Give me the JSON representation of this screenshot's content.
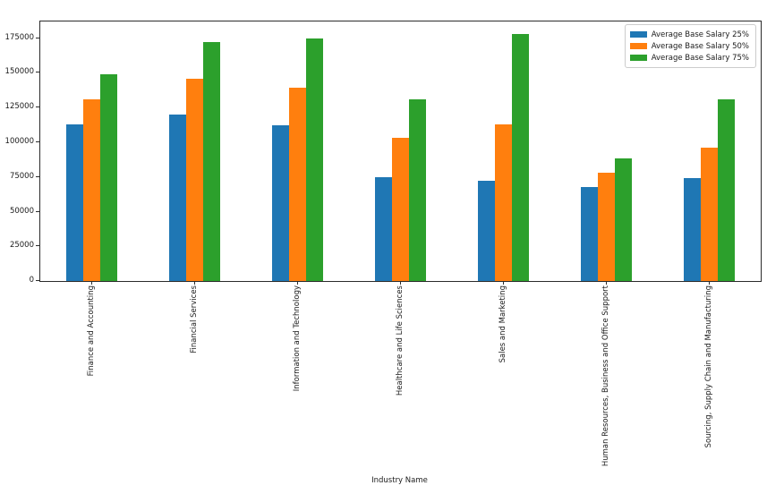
{
  "chart_data": {
    "type": "bar",
    "title": "",
    "xlabel": "Industry Name",
    "ylabel": "",
    "categories": [
      "Finance and Accounting",
      "Financial Services",
      "Information and Technology",
      "Healthcare and Life Sciences",
      "Sales and Marketing",
      "Human Resources, Business and Office Support",
      "Sourcing, Supply Chain and Manufacturing"
    ],
    "series": [
      {
        "name": "Average Base Salary 25%",
        "color": "#1f77b4",
        "values": [
          113000,
          120000,
          112000,
          75000,
          72000,
          68000,
          74000
        ]
      },
      {
        "name": "Average Base Salary 50%",
        "color": "#ff7f0e",
        "values": [
          131000,
          145500,
          139500,
          103000,
          113000,
          78000,
          96000
        ]
      },
      {
        "name": "Average Base Salary 75%",
        "color": "#2ca02c",
        "values": [
          149000,
          172000,
          175000,
          131000,
          178000,
          88500,
          131000
        ]
      }
    ],
    "ylim": [
      0,
      187000
    ],
    "yticks": [
      0,
      25000,
      50000,
      75000,
      100000,
      125000,
      150000,
      175000
    ],
    "grid": false,
    "legend_position": "upper right",
    "x_tick_rotation": 90,
    "group_width_fraction": 0.5
  }
}
